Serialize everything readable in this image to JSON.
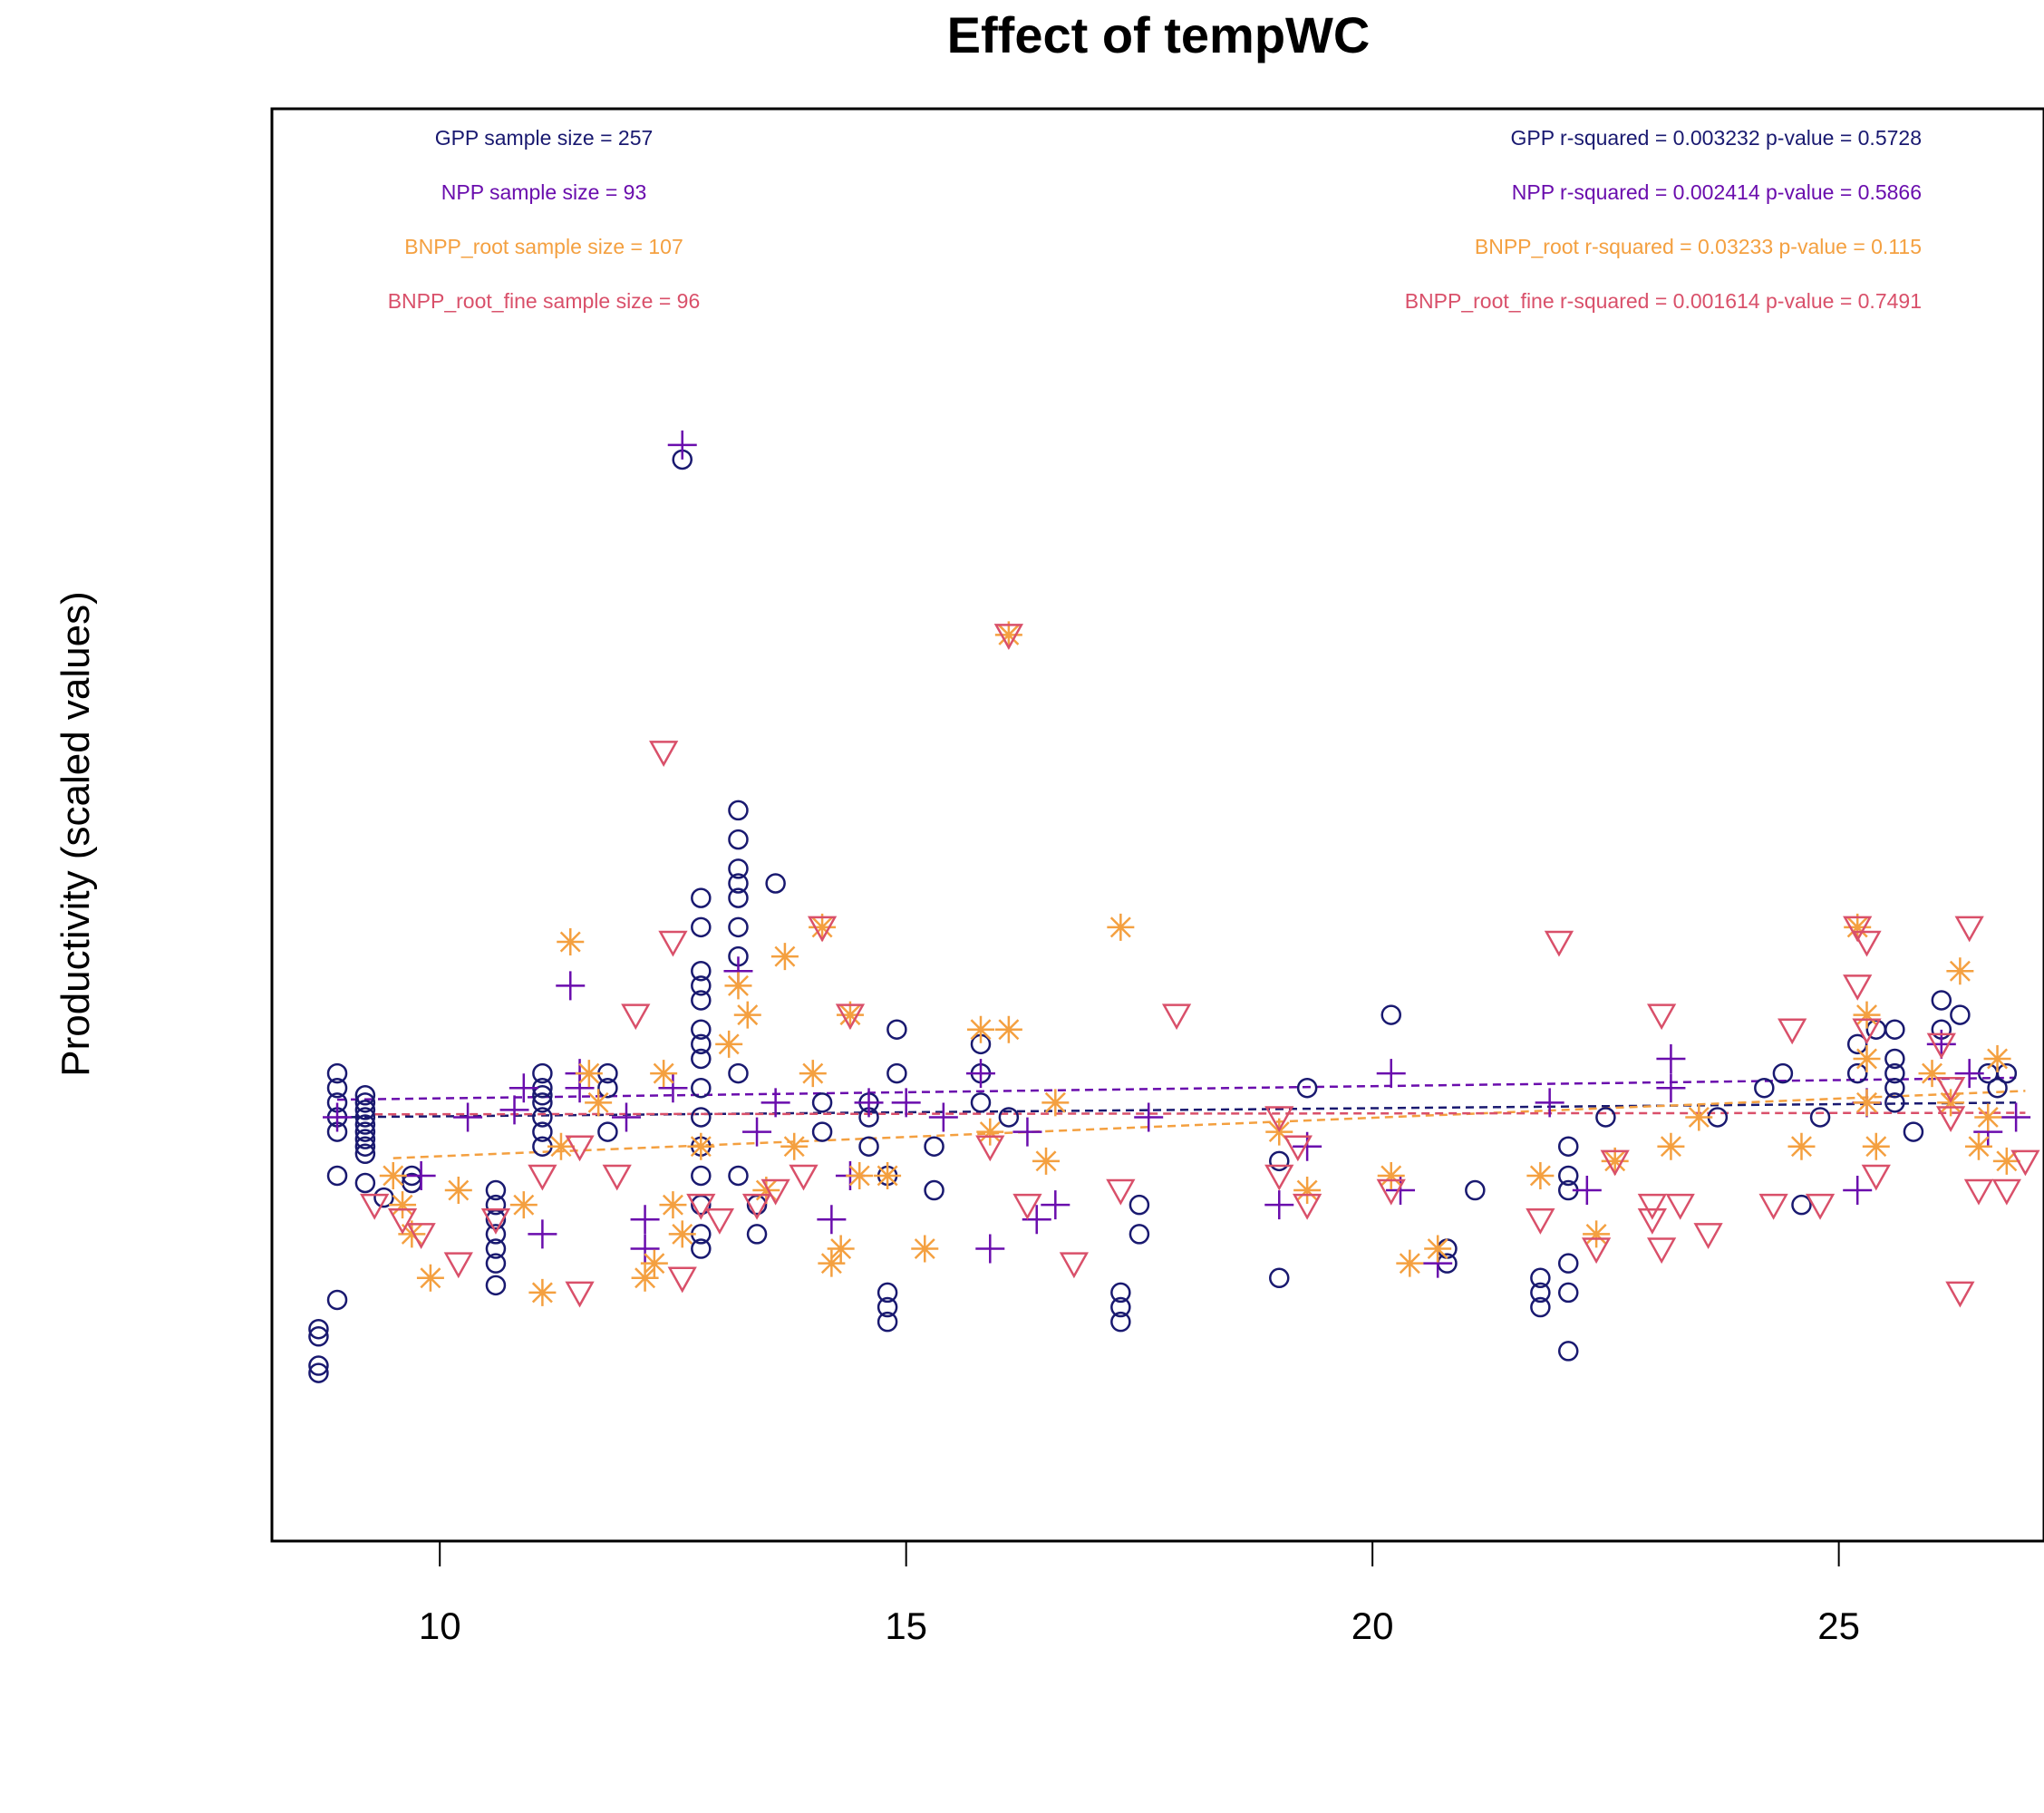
{
  "chart_data": {
    "type": "scatter",
    "title": "Effect of tempWC",
    "xlabel": "",
    "ylabel": "Productivity (scaled values)",
    "xlim": [
      8.2,
      27.2
    ],
    "ylim": [
      -2.6,
      7.2
    ],
    "x_ticks": [
      10,
      15,
      20,
      25
    ],
    "x_tick_labels": [
      "10",
      "15",
      "20",
      "25"
    ],
    "grid": false,
    "legend": "none",
    "annotations_left": [
      {
        "text": "GPP sample size = 257",
        "color": "#191970"
      },
      {
        "text": "NPP sample size = 93",
        "color": "#6A0DAD"
      },
      {
        "text": "BNPP_root sample size = 107",
        "color": "#F4A040"
      },
      {
        "text": "BNPP_root_fine sample size = 96",
        "color": "#D9506A"
      }
    ],
    "annotations_right": [
      {
        "text": "GPP r-squared =  0.003232 p-value =  0.5728",
        "color": "#191970"
      },
      {
        "text": "NPP r-squared =  0.002414 p-value =  0.5866",
        "color": "#6A0DAD"
      },
      {
        "text": "BNPP_root r-squared =  0.03233 p-value =  0.115",
        "color": "#F4A040"
      },
      {
        "text": "BNPP_root_fine r-squared =  0.001614 p-value =  0.7491",
        "color": "#D9506A"
      }
    ],
    "series": [
      {
        "name": "GPP",
        "marker": "circle",
        "color": "#191970",
        "points": [
          [
            8.7,
            -1.4
          ],
          [
            8.7,
            -1.45
          ],
          [
            8.7,
            -1.15
          ],
          [
            8.7,
            -1.2
          ],
          [
            8.9,
            -0.95
          ],
          [
            8.9,
            -0.1
          ],
          [
            8.9,
            0.2
          ],
          [
            8.9,
            0.3
          ],
          [
            8.9,
            0.4
          ],
          [
            8.9,
            0.5
          ],
          [
            8.9,
            0.6
          ],
          [
            9.2,
            0.05
          ],
          [
            9.2,
            0.1
          ],
          [
            9.2,
            0.15
          ],
          [
            9.2,
            0.2
          ],
          [
            9.2,
            0.25
          ],
          [
            9.2,
            0.3
          ],
          [
            9.2,
            0.35
          ],
          [
            9.2,
            0.4
          ],
          [
            9.2,
            0.45
          ],
          [
            9.2,
            -0.15
          ],
          [
            9.4,
            -0.25
          ],
          [
            9.7,
            -0.1
          ],
          [
            9.7,
            -0.15
          ],
          [
            10.6,
            -0.2
          ],
          [
            10.6,
            -0.3
          ],
          [
            10.6,
            -0.4
          ],
          [
            10.6,
            -0.5
          ],
          [
            10.6,
            -0.6
          ],
          [
            10.6,
            -0.7
          ],
          [
            10.6,
            -0.85
          ],
          [
            11.1,
            0.1
          ],
          [
            11.1,
            0.2
          ],
          [
            11.1,
            0.3
          ],
          [
            11.1,
            0.4
          ],
          [
            11.1,
            0.45
          ],
          [
            11.1,
            0.5
          ],
          [
            11.1,
            0.6
          ],
          [
            11.8,
            0.6
          ],
          [
            11.8,
            0.5
          ],
          [
            11.8,
            0.2
          ],
          [
            12.6,
            4.8
          ],
          [
            12.8,
            1.8
          ],
          [
            12.8,
            1.6
          ],
          [
            12.8,
            1.3
          ],
          [
            12.8,
            1.2
          ],
          [
            12.8,
            1.1
          ],
          [
            12.8,
            0.9
          ],
          [
            12.8,
            0.8
          ],
          [
            12.8,
            0.7
          ],
          [
            12.8,
            0.5
          ],
          [
            12.8,
            0.3
          ],
          [
            12.8,
            0.1
          ],
          [
            12.8,
            -0.1
          ],
          [
            12.8,
            -0.3
          ],
          [
            12.8,
            -0.5
          ],
          [
            12.8,
            -0.6
          ],
          [
            13.2,
            2.4
          ],
          [
            13.2,
            2.2
          ],
          [
            13.2,
            2.0
          ],
          [
            13.2,
            1.9
          ],
          [
            13.2,
            1.8
          ],
          [
            13.2,
            1.6
          ],
          [
            13.2,
            1.4
          ],
          [
            13.2,
            0.6
          ],
          [
            13.2,
            -0.1
          ],
          [
            13.4,
            -0.3
          ],
          [
            13.4,
            -0.5
          ],
          [
            13.6,
            1.9
          ],
          [
            14.1,
            0.4
          ],
          [
            14.1,
            0.2
          ],
          [
            14.6,
            0.4
          ],
          [
            14.6,
            0.3
          ],
          [
            14.6,
            0.1
          ],
          [
            14.8,
            -0.1
          ],
          [
            14.8,
            -0.9
          ],
          [
            14.8,
            -1.0
          ],
          [
            14.8,
            -1.1
          ],
          [
            14.9,
            0.9
          ],
          [
            14.9,
            0.6
          ],
          [
            15.3,
            0.1
          ],
          [
            15.3,
            -0.2
          ],
          [
            15.8,
            0.8
          ],
          [
            15.8,
            0.6
          ],
          [
            15.8,
            0.4
          ],
          [
            16.1,
            0.3
          ],
          [
            17.3,
            -0.9
          ],
          [
            17.3,
            -1.0
          ],
          [
            17.3,
            -1.1
          ],
          [
            17.5,
            -0.3
          ],
          [
            17.5,
            -0.5
          ],
          [
            19.0,
            0.0
          ],
          [
            19.0,
            -0.8
          ],
          [
            19.3,
            0.5
          ],
          [
            20.2,
            1.0
          ],
          [
            20.8,
            -0.6
          ],
          [
            20.8,
            -0.7
          ],
          [
            21.1,
            -0.2
          ],
          [
            21.8,
            -0.9
          ],
          [
            21.8,
            -1.0
          ],
          [
            21.8,
            -0.8
          ],
          [
            22.1,
            0.1
          ],
          [
            22.1,
            -0.1
          ],
          [
            22.1,
            -0.2
          ],
          [
            22.1,
            -0.7
          ],
          [
            22.1,
            -0.9
          ],
          [
            22.1,
            -1.3
          ],
          [
            22.5,
            0.3
          ],
          [
            23.7,
            0.3
          ],
          [
            24.2,
            0.5
          ],
          [
            24.4,
            0.6
          ],
          [
            24.6,
            -0.3
          ],
          [
            24.8,
            0.3
          ],
          [
            25.2,
            0.8
          ],
          [
            25.2,
            0.6
          ],
          [
            25.4,
            0.9
          ],
          [
            25.6,
            0.9
          ],
          [
            25.6,
            0.7
          ],
          [
            25.6,
            0.6
          ],
          [
            25.6,
            0.5
          ],
          [
            25.6,
            0.4
          ],
          [
            25.8,
            0.2
          ],
          [
            26.1,
            1.1
          ],
          [
            26.1,
            0.9
          ],
          [
            26.3,
            1.0
          ],
          [
            26.6,
            0.6
          ],
          [
            26.7,
            0.5
          ],
          [
            26.8,
            0.6
          ]
        ]
      },
      {
        "name": "NPP",
        "marker": "plus",
        "color": "#6A0DAD",
        "points": [
          [
            8.9,
            0.3
          ],
          [
            9.8,
            -0.1
          ],
          [
            10.3,
            0.3
          ],
          [
            10.8,
            0.35
          ],
          [
            10.9,
            0.5
          ],
          [
            11.1,
            -0.5
          ],
          [
            11.5,
            0.6
          ],
          [
            11.5,
            0.5
          ],
          [
            11.4,
            1.2
          ],
          [
            12.0,
            0.3
          ],
          [
            12.2,
            -0.4
          ],
          [
            12.2,
            -0.6
          ],
          [
            12.5,
            0.5
          ],
          [
            12.6,
            4.9
          ],
          [
            13.2,
            1.3
          ],
          [
            13.4,
            0.2
          ],
          [
            13.6,
            0.4
          ],
          [
            14.2,
            -0.4
          ],
          [
            14.4,
            -0.1
          ],
          [
            14.6,
            0.4
          ],
          [
            15.0,
            0.4
          ],
          [
            15.4,
            0.3
          ],
          [
            15.8,
            0.6
          ],
          [
            15.9,
            -0.6
          ],
          [
            16.3,
            0.2
          ],
          [
            16.4,
            -0.4
          ],
          [
            16.6,
            -0.3
          ],
          [
            17.6,
            0.3
          ],
          [
            19.0,
            -0.3
          ],
          [
            19.3,
            0.1
          ],
          [
            20.2,
            0.6
          ],
          [
            20.3,
            -0.2
          ],
          [
            20.7,
            -0.7
          ],
          [
            21.9,
            0.4
          ],
          [
            22.3,
            -0.2
          ],
          [
            23.2,
            0.7
          ],
          [
            23.2,
            0.5
          ],
          [
            25.2,
            -0.2
          ],
          [
            25.3,
            0.4
          ],
          [
            26.1,
            0.8
          ],
          [
            26.4,
            0.6
          ],
          [
            26.6,
            0.2
          ],
          [
            26.9,
            0.3
          ]
        ]
      },
      {
        "name": "BNPP_root",
        "marker": "asterisk",
        "color": "#F4A040",
        "points": [
          [
            9.5,
            -0.1
          ],
          [
            9.6,
            -0.3
          ],
          [
            9.7,
            -0.5
          ],
          [
            9.9,
            -0.8
          ],
          [
            10.2,
            -0.2
          ],
          [
            10.9,
            -0.3
          ],
          [
            11.1,
            -0.9
          ],
          [
            11.3,
            0.1
          ],
          [
            11.4,
            1.5
          ],
          [
            11.6,
            0.6
          ],
          [
            11.7,
            0.4
          ],
          [
            12.2,
            -0.8
          ],
          [
            12.3,
            -0.7
          ],
          [
            12.4,
            0.6
          ],
          [
            12.5,
            -0.3
          ],
          [
            12.6,
            -0.5
          ],
          [
            12.8,
            0.1
          ],
          [
            13.1,
            0.8
          ],
          [
            13.2,
            1.2
          ],
          [
            13.3,
            1.0
          ],
          [
            13.5,
            -0.2
          ],
          [
            13.7,
            1.4
          ],
          [
            13.8,
            0.1
          ],
          [
            14.0,
            0.6
          ],
          [
            14.1,
            1.6
          ],
          [
            14.2,
            -0.7
          ],
          [
            14.3,
            -0.6
          ],
          [
            14.4,
            1.0
          ],
          [
            14.5,
            -0.1
          ],
          [
            14.8,
            -0.1
          ],
          [
            15.2,
            -0.6
          ],
          [
            15.8,
            0.9
          ],
          [
            15.9,
            0.2
          ],
          [
            16.1,
            0.9
          ],
          [
            16.1,
            3.6
          ],
          [
            16.5,
            0.0
          ],
          [
            16.6,
            0.4
          ],
          [
            17.3,
            1.6
          ],
          [
            19.0,
            0.2
          ],
          [
            19.3,
            -0.2
          ],
          [
            20.2,
            -0.1
          ],
          [
            20.4,
            -0.7
          ],
          [
            20.7,
            -0.6
          ],
          [
            21.8,
            -0.1
          ],
          [
            22.4,
            -0.5
          ],
          [
            22.6,
            0.0
          ],
          [
            23.2,
            0.1
          ],
          [
            23.5,
            0.3
          ],
          [
            24.6,
            0.1
          ],
          [
            25.2,
            1.6
          ],
          [
            25.3,
            1.0
          ],
          [
            25.3,
            0.7
          ],
          [
            25.3,
            0.4
          ],
          [
            25.4,
            0.1
          ],
          [
            26.0,
            0.6
          ],
          [
            26.2,
            0.4
          ],
          [
            26.3,
            1.3
          ],
          [
            26.5,
            0.1
          ],
          [
            26.6,
            0.3
          ],
          [
            26.7,
            0.7
          ],
          [
            26.8,
            0.0
          ]
        ]
      },
      {
        "name": "BNPP_root_fine",
        "marker": "triangle-down",
        "color": "#D9506A",
        "points": [
          [
            9.3,
            -0.3
          ],
          [
            9.6,
            -0.4
          ],
          [
            9.8,
            -0.5
          ],
          [
            10.2,
            -0.7
          ],
          [
            10.6,
            -0.4
          ],
          [
            11.1,
            -0.1
          ],
          [
            11.5,
            -0.9
          ],
          [
            11.5,
            0.1
          ],
          [
            11.9,
            -0.1
          ],
          [
            12.1,
            1.0
          ],
          [
            12.4,
            2.8
          ],
          [
            12.5,
            1.5
          ],
          [
            12.6,
            -0.8
          ],
          [
            12.8,
            -0.3
          ],
          [
            13.0,
            -0.4
          ],
          [
            13.4,
            -0.3
          ],
          [
            13.6,
            -0.2
          ],
          [
            13.9,
            -0.1
          ],
          [
            14.1,
            1.6
          ],
          [
            14.4,
            1.0
          ],
          [
            15.9,
            0.1
          ],
          [
            16.1,
            3.6
          ],
          [
            16.3,
            -0.3
          ],
          [
            16.8,
            -0.7
          ],
          [
            17.3,
            -0.2
          ],
          [
            17.9,
            1.0
          ],
          [
            19.0,
            0.3
          ],
          [
            19.0,
            -0.1
          ],
          [
            19.2,
            0.1
          ],
          [
            19.3,
            -0.3
          ],
          [
            20.2,
            -0.2
          ],
          [
            21.8,
            -0.4
          ],
          [
            22.0,
            1.5
          ],
          [
            22.4,
            -0.6
          ],
          [
            22.6,
            0.0
          ],
          [
            23.0,
            -0.3
          ],
          [
            23.0,
            -0.4
          ],
          [
            23.1,
            -0.6
          ],
          [
            23.1,
            1.0
          ],
          [
            23.3,
            -0.3
          ],
          [
            23.6,
            -0.5
          ],
          [
            24.3,
            -0.3
          ],
          [
            24.5,
            0.9
          ],
          [
            24.8,
            -0.3
          ],
          [
            25.2,
            1.6
          ],
          [
            25.3,
            1.5
          ],
          [
            25.2,
            1.2
          ],
          [
            25.3,
            0.9
          ],
          [
            25.4,
            -0.1
          ],
          [
            26.1,
            0.8
          ],
          [
            26.2,
            0.5
          ],
          [
            26.2,
            0.3
          ],
          [
            26.4,
            1.6
          ],
          [
            26.5,
            -0.2
          ],
          [
            26.3,
            -0.9
          ],
          [
            26.8,
            -0.2
          ],
          [
            27.0,
            0.0
          ]
        ]
      }
    ],
    "trend_lines": [
      {
        "series": "GPP",
        "color": "#191970",
        "x": [
          8.9,
          26.9
        ],
        "y": [
          0.3,
          0.4
        ]
      },
      {
        "series": "NPP",
        "color": "#6A0DAD",
        "x": [
          8.9,
          26.9
        ],
        "y": [
          0.42,
          0.57
        ]
      },
      {
        "series": "BNPP_root",
        "color": "#F4A040",
        "x": [
          9.5,
          27.0
        ],
        "y": [
          0.02,
          0.48
        ]
      },
      {
        "series": "BNPP_root_fine",
        "color": "#D9506A",
        "x": [
          9.3,
          27.0
        ],
        "y": [
          0.32,
          0.33
        ]
      }
    ]
  }
}
